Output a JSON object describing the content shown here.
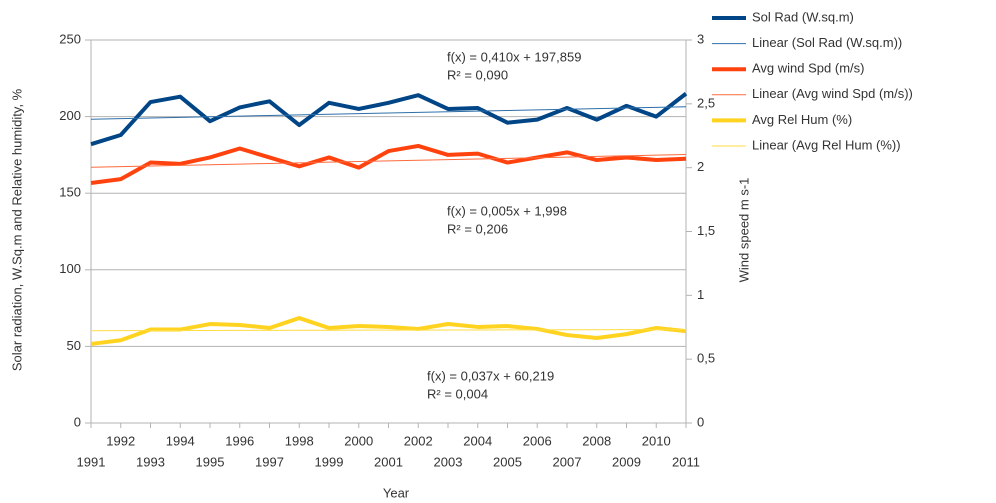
{
  "chart_data": {
    "type": "line",
    "x": [
      1991,
      1992,
      1993,
      1994,
      1995,
      1996,
      1997,
      1998,
      1999,
      2000,
      2001,
      2002,
      2003,
      2004,
      2005,
      2006,
      2007,
      2008,
      2009,
      2010,
      2011
    ],
    "xlim": [
      1991,
      2011
    ],
    "ylim": [
      0,
      250
    ],
    "yticks": [
      0,
      50,
      100,
      150,
      200,
      250
    ],
    "y2lim": [
      0,
      3
    ],
    "y2ticks": [
      0,
      {
        "value": 0.5,
        "label": "0,5"
      },
      1,
      {
        "value": 1.5,
        "label": "1,5"
      },
      2,
      {
        "value": 2.5,
        "label": "2,5"
      },
      3
    ],
    "y_label": "Solar radiation, W.Sq.m and Relative humidity, %",
    "y2_label": "Wind speed m s-1",
    "x_label": "Year",
    "grid": true,
    "legend": "right",
    "series": [
      {
        "name": "Sol Rad (W.sq.m)",
        "color": "#004586",
        "values": [
          182,
          188,
          209.5,
          213,
          197,
          206,
          210,
          194.5,
          209,
          205,
          209,
          214,
          205,
          205.6,
          196,
          198,
          205.6,
          198,
          207,
          200,
          215
        ]
      },
      {
        "name": "Linear (Sol Rad (W.sq.m))",
        "color": "#2e6fa8",
        "values": [
          198.269,
          198.679,
          199.089,
          199.499,
          199.909,
          200.319,
          200.729,
          201.139,
          201.549,
          201.959,
          202.369,
          202.779,
          203.189,
          203.599,
          204.009,
          204.419,
          204.829,
          205.239,
          205.649,
          206.059,
          206.469
        ]
      },
      {
        "name": "Avg wind Spd (m/s)",
        "color": "#ff420e",
        "axis": "y2",
        "values": [
          1.88,
          1.91,
          2.04,
          2.03,
          2.08,
          2.15,
          2.08,
          2.01,
          2.08,
          2.0,
          2.13,
          2.17,
          2.1,
          2.11,
          2.04,
          2.08,
          2.12,
          2.06,
          2.08,
          2.06,
          2.07
        ]
      },
      {
        "name": "Linear (Avg wind Spd (m/s))",
        "color": "#ff6a3d",
        "axis": "y2",
        "values": [
          2.003,
          2.008,
          2.013,
          2.018,
          2.023,
          2.028,
          2.033,
          2.038,
          2.043,
          2.048,
          2.053,
          2.058,
          2.063,
          2.068,
          2.073,
          2.078,
          2.083,
          2.088,
          2.093,
          2.098,
          2.103
        ]
      },
      {
        "name": "Avg Rel Hum (%)",
        "color": "#ffd320",
        "values": [
          51.6,
          54,
          61,
          61,
          64.6,
          64,
          62,
          68.5,
          62,
          63.3,
          62.7,
          61.4,
          64.6,
          62.7,
          63.3,
          61.4,
          57.4,
          55.5,
          58,
          62,
          60
        ]
      },
      {
        "name": "Linear (Avg Rel Hum (%))",
        "color": "#ffdc40",
        "values": [
          60.256,
          60.293,
          60.33,
          60.367,
          60.404,
          60.441,
          60.478,
          60.515,
          60.552,
          60.589,
          60.626,
          60.663,
          60.7,
          60.737,
          60.774,
          60.811,
          60.848,
          60.885,
          60.922,
          60.959,
          60.996
        ]
      }
    ],
    "annotations": [
      [
        "f(x) = 0,410x + 197,859",
        "R² = 0,090"
      ],
      [
        "f(x) = 0,005x + 1,998",
        "R² = 0,206"
      ],
      [
        "f(x) = 0,037x + 60,219",
        "R² = 0,004"
      ]
    ]
  }
}
